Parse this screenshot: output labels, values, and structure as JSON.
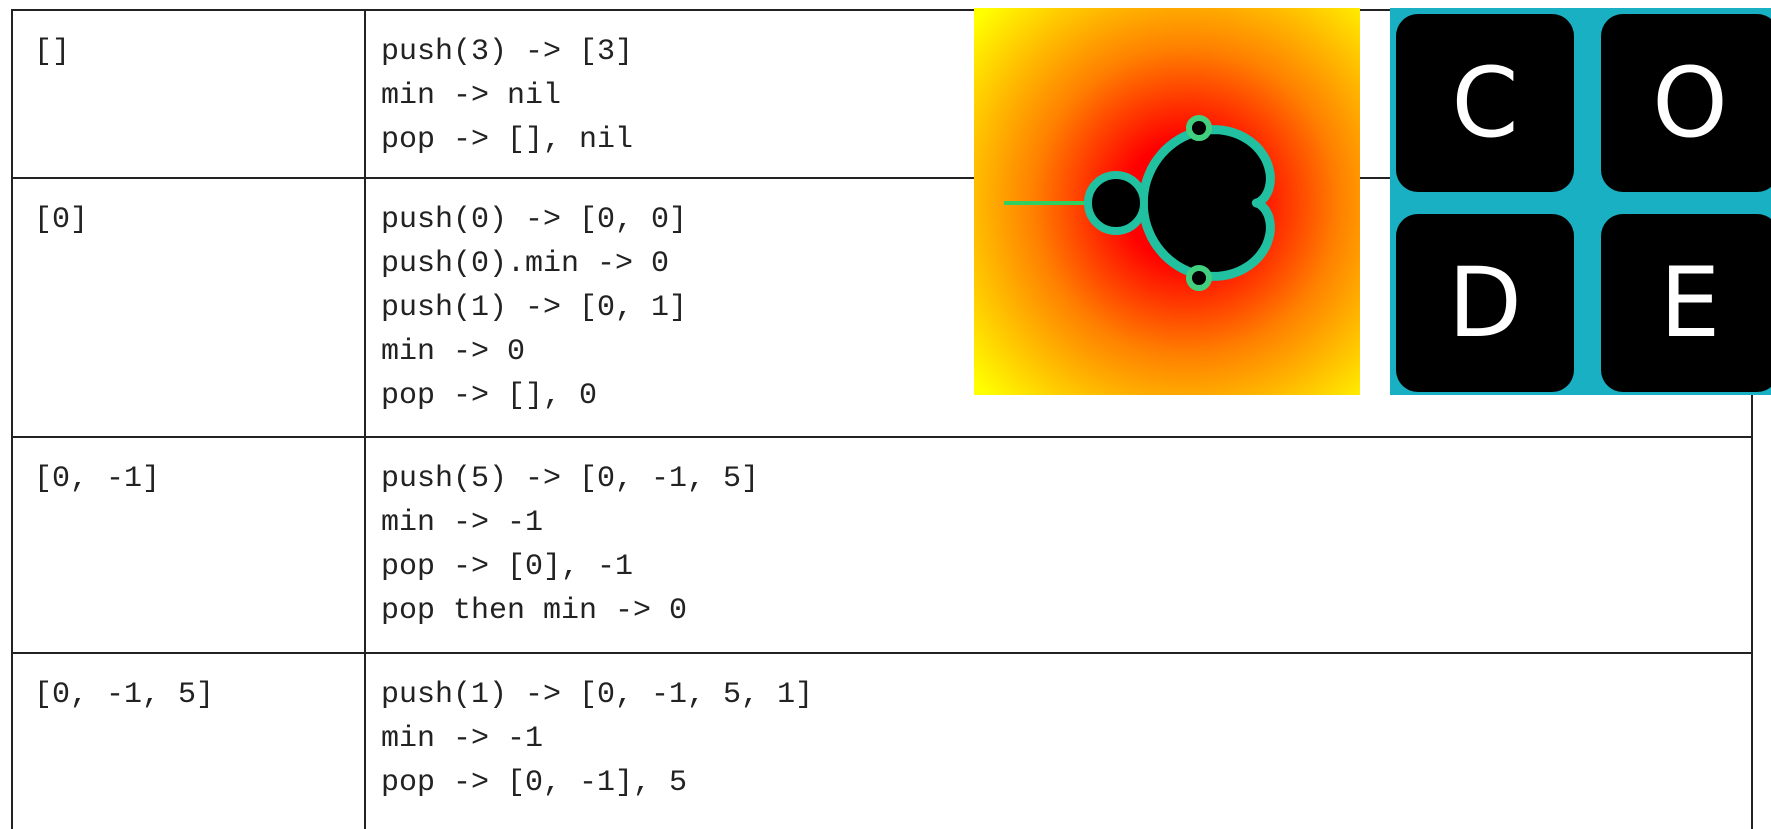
{
  "table": {
    "rows": [
      {
        "state": "[]",
        "ops": [
          "push(3) -> [3]",
          "min -> nil",
          "pop -> [], nil"
        ]
      },
      {
        "state": "[0]",
        "ops": [
          "push(0) -> [0, 0]",
          "push(0).min -> 0",
          "push(1) -> [0, 1]",
          "min -> 0",
          "pop -> [], 0"
        ]
      },
      {
        "state": "[0, -1]",
        "ops": [
          "push(5) -> [0, -1, 5]",
          "min -> -1",
          "pop -> [0], -1",
          "pop then min -> 0"
        ]
      },
      {
        "state": "[0, -1, 5]",
        "ops": [
          "push(1) -> [0, -1, 5, 1]",
          "min -> -1",
          "pop -> [0, -1], 5"
        ]
      }
    ]
  },
  "logo": {
    "letters": [
      "C",
      "O",
      "D",
      "E"
    ]
  }
}
